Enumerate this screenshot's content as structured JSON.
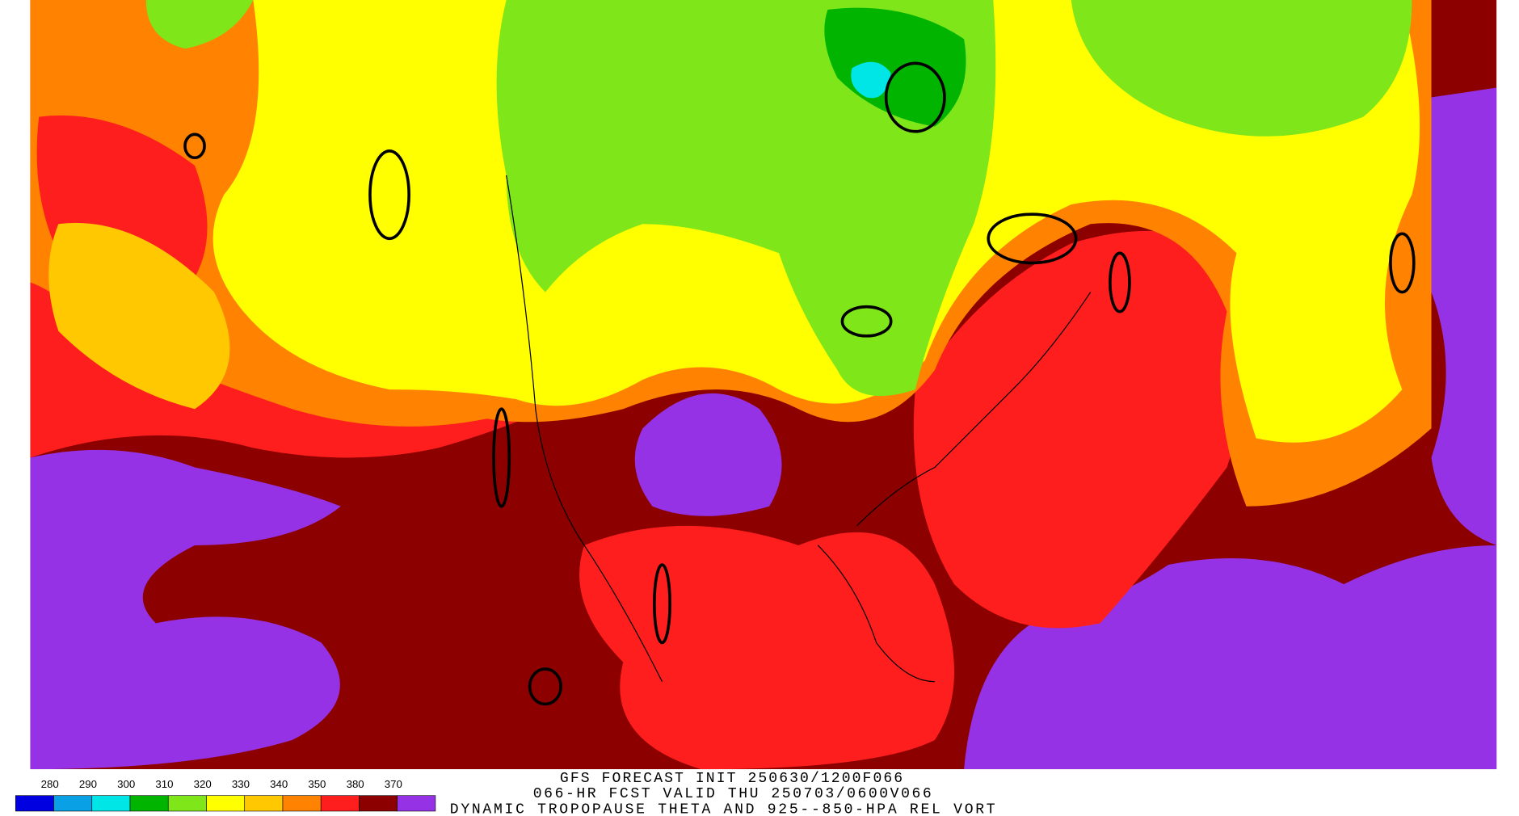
{
  "title_lines": [
    "GFS FORECAST INIT 250630/1200F066",
    "066-HR FCST VALID THU 250703/0600V066",
    "DYNAMIC TROPOPAUSE THETA AND 925--850-HPA REL VORT"
  ],
  "legend": {
    "labels": [
      280,
      290,
      300,
      310,
      320,
      330,
      340,
      350,
      380,
      370
    ],
    "colors": [
      "#0000e0",
      "#0aa0e6",
      "#00e5e5",
      "#00b400",
      "#7fe61a",
      "#ffff00",
      "#ffc800",
      "#ff8200",
      "#ff1e1e",
      "#8c0000",
      "#9632e6"
    ]
  }
}
